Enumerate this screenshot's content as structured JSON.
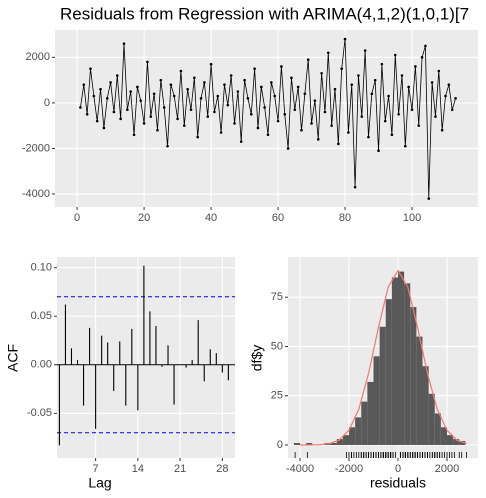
{
  "chart_data": [
    {
      "type": "line",
      "title": "Residuals from Regression with ARIMA(4,1,2)(1,0,1)[7",
      "color": "#000000",
      "grid": true,
      "x": [
        1,
        2,
        3,
        4,
        5,
        6,
        7,
        8,
        9,
        10,
        11,
        12,
        13,
        14,
        15,
        16,
        17,
        18,
        19,
        20,
        21,
        22,
        23,
        24,
        25,
        26,
        27,
        28,
        29,
        30,
        31,
        32,
        33,
        34,
        35,
        36,
        37,
        38,
        39,
        40,
        41,
        42,
        43,
        44,
        45,
        46,
        47,
        48,
        49,
        50,
        51,
        52,
        53,
        54,
        55,
        56,
        57,
        58,
        59,
        60,
        61,
        62,
        63,
        64,
        65,
        66,
        67,
        68,
        69,
        70,
        71,
        72,
        73,
        74,
        75,
        76,
        77,
        78,
        79,
        80,
        81,
        82,
        83,
        84,
        85,
        86,
        87,
        88,
        89,
        90,
        91,
        92,
        93,
        94,
        95,
        96,
        97,
        98,
        99,
        100,
        101,
        102,
        103,
        104,
        105,
        106,
        107,
        108,
        109,
        110,
        111,
        112,
        113
      ],
      "values": [
        -200,
        800,
        -500,
        1500,
        300,
        -800,
        600,
        -1100,
        200,
        900,
        -400,
        1200,
        -700,
        2600,
        -300,
        500,
        -1400,
        700,
        100,
        -900,
        1800,
        -600,
        400,
        -1200,
        1000,
        -200,
        -1900,
        800,
        300,
        -700,
        1400,
        -1000,
        600,
        -300,
        1100,
        -1500,
        200,
        900,
        -600,
        1700,
        -400,
        300,
        -1300,
        800,
        -100,
        1200,
        -900,
        500,
        -1700,
        1000,
        200,
        -500,
        1500,
        -1100,
        700,
        -200,
        -1400,
        900,
        300,
        -800,
        1600,
        -500,
        -2000,
        1100,
        -300,
        700,
        -1200,
        400,
        1900,
        -900,
        100,
        -1600,
        1300,
        -400,
        2200,
        -1000,
        600,
        -1800,
        1500,
        2800,
        -1300,
        800,
        -3700,
        1200,
        -600,
        2300,
        -1500,
        400,
        1000,
        -2100,
        1700,
        -800,
        300,
        -1400,
        2100,
        -500,
        1200,
        -1900,
        700,
        -300,
        1600,
        -1000,
        2000,
        2500,
        -4200,
        900,
        -600,
        1400,
        -1200,
        300,
        800,
        -300,
        200
      ],
      "xlim": [
        -6.6,
        119.7
      ],
      "xticks": [
        0,
        20,
        40,
        60,
        80,
        100
      ],
      "ylim": [
        -4570,
        3200
      ],
      "yticks": [
        -4000,
        -2000,
        0,
        2000
      ]
    },
    {
      "type": "acf",
      "xlabel": "Lag",
      "ylabel": "ACF",
      "color": "#000000",
      "grid": true,
      "ci": 0.07,
      "ci_color": "#0000ff",
      "x": [
        1,
        2,
        3,
        4,
        5,
        6,
        7,
        8,
        9,
        10,
        11,
        12,
        13,
        14,
        15,
        16,
        17,
        18,
        19,
        20,
        21,
        22,
        23,
        24,
        25,
        26,
        27,
        28,
        29
      ],
      "values": [
        -0.083,
        0.062,
        0.017,
        0.005,
        -0.042,
        0.038,
        -0.066,
        0.03,
        0.023,
        -0.027,
        0.024,
        -0.042,
        0.037,
        -0.047,
        0.102,
        0.055,
        0.04,
        -0.002,
        0.02,
        -0.041,
        0.0,
        -0.003,
        0.005,
        0.046,
        -0.017,
        0.016,
        0.012,
        -0.008,
        -0.016
      ],
      "xlim": [
        0.6,
        30.1
      ],
      "xticks": [
        7,
        14,
        21,
        28
      ],
      "ylim": [
        -0.096,
        0.111
      ],
      "yticks": [
        {
          "value": -0.05,
          "label": "-0.05"
        },
        {
          "value": 0,
          "label": "0.00"
        },
        {
          "value": 0.05,
          "label": "0.05"
        },
        {
          "value": 0.1,
          "label": "0.10"
        }
      ]
    },
    {
      "type": "histogram",
      "xlabel": "residuals",
      "ylabel": "df$y",
      "color": "#595959",
      "curve_color": "#f8766d",
      "grid": true,
      "bins": [
        -4250,
        -4000,
        -3750,
        -3500,
        -3250,
        -3000,
        -2750,
        -2500,
        -2250,
        -2000,
        -1750,
        -1500,
        -1250,
        -1000,
        -750,
        -500,
        -250,
        0,
        250,
        500,
        750,
        1000,
        1250,
        1500,
        1750,
        2000,
        2250,
        2500,
        2750
      ],
      "counts": [
        1,
        0,
        1,
        0,
        0,
        1,
        1,
        3,
        5,
        9,
        14,
        22,
        32,
        45,
        60,
        74,
        85,
        88,
        82,
        70,
        55,
        40,
        26,
        16,
        9,
        5,
        3,
        2
      ],
      "curve": {
        "x": [
          -4000,
          -3600,
          -3200,
          -2800,
          -2400,
          -2000,
          -1600,
          -1200,
          -800,
          -400,
          0,
          400,
          800,
          1200,
          1600,
          2000,
          2400,
          2800
        ],
        "values": [
          0,
          0.03,
          0.16,
          0.7,
          2.5,
          7.5,
          18.2,
          36.4,
          59.6,
          80.2,
          88.5,
          80.2,
          59.6,
          36.4,
          18.2,
          7.5,
          2.5,
          0.7
        ]
      },
      "xlim": [
        -4490,
        3265
      ],
      "xticks": [
        -4000,
        -2000,
        0,
        2000
      ],
      "ylim": [
        -6.6,
        95.4
      ],
      "yticks": [
        0,
        25,
        50,
        75
      ]
    }
  ]
}
